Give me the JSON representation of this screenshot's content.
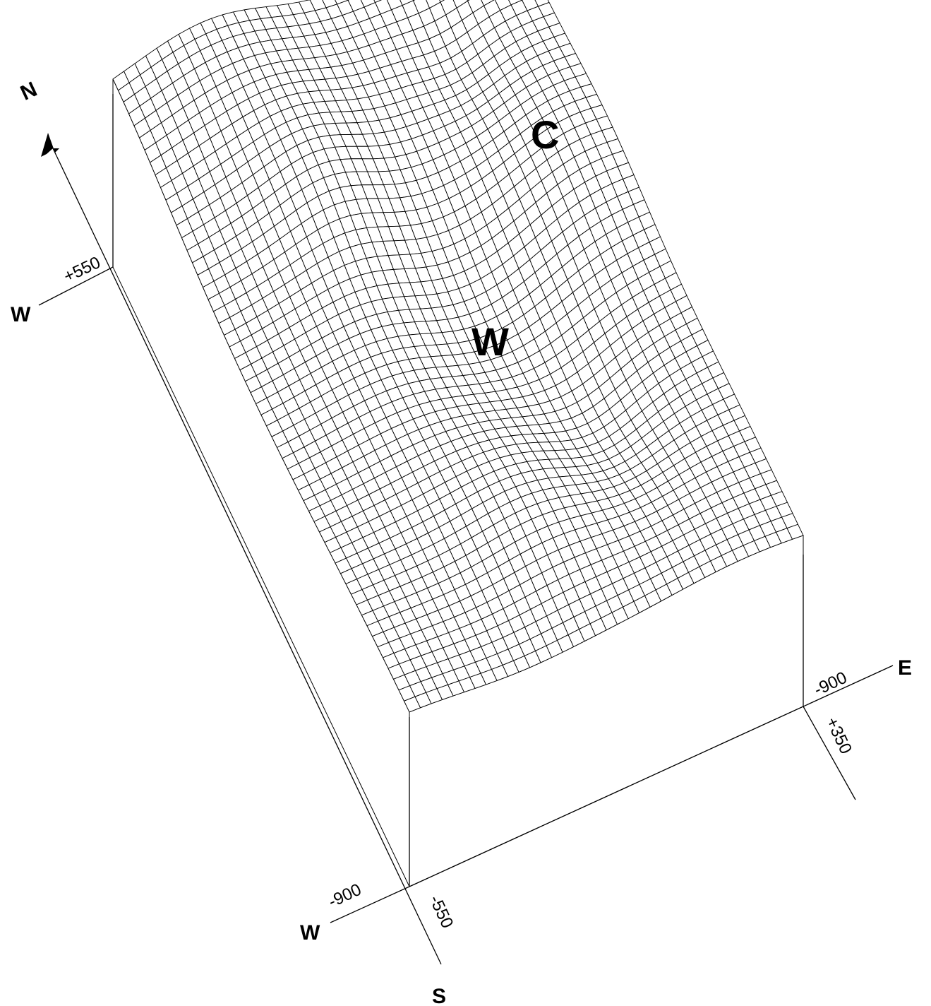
{
  "compass": {
    "north": "N"
  },
  "axes": {
    "upper_west": {
      "direction": "W",
      "coordinate": "+550"
    },
    "lower_west": {
      "direction": "W",
      "coordinate": "-900"
    },
    "south": {
      "direction": "S",
      "coordinate": "-550"
    },
    "east": {
      "direction": "E",
      "coordinate": "-900"
    },
    "east_north": {
      "coordinate": "+350"
    }
  },
  "markers": {
    "c": "C",
    "w": "W"
  }
}
